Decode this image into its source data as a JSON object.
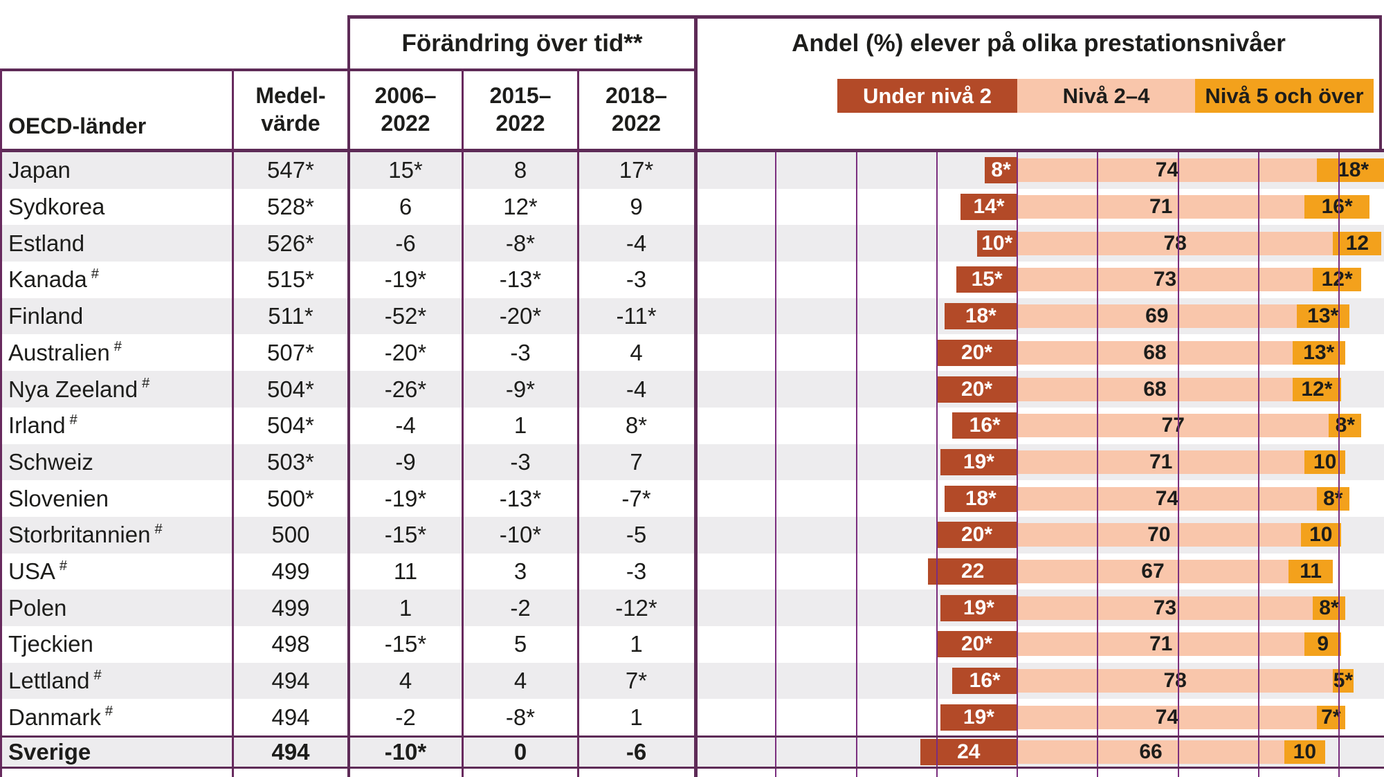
{
  "header": {
    "col_country": "OECD-länder",
    "col_mean": "Medel-\nvärde",
    "group_change": "Förändring över tid**",
    "col_period1": "2006–\n2022",
    "col_period2": "2015–\n2022",
    "col_period3": "2018–\n2022",
    "group_share": "Andel (%) elever på olika prestationsnivåer",
    "legend": [
      {
        "label": "Under nivå 2",
        "color": "#b34a28",
        "text_color": "#ffffff"
      },
      {
        "label": "Nivå 2–4",
        "color": "#f9c6ab",
        "text_color": "#1d1d1b"
      },
      {
        "label": "Nivå 5 och över",
        "color": "#f3a11c",
        "text_color": "#1d1d1b"
      }
    ]
  },
  "colors": {
    "under_level2": "#b34a28",
    "level2_4": "#f9c6ab",
    "level5_over": "#f3a11c",
    "border_purple": "#5e2b57",
    "gridline_purple": "#7b2e7e",
    "row_stripe": "#edecee",
    "text": "#1d1d1b"
  },
  "rows": [
    {
      "name": "Japan",
      "hash": false,
      "bold": false,
      "mean": "547*",
      "d2006": "15*",
      "d2015": "8",
      "d2018": "17*",
      "under": 8,
      "under_label": "8*",
      "mid": 74,
      "mid_label": "74",
      "high": 18,
      "high_label": "18*"
    },
    {
      "name": "Sydkorea",
      "hash": false,
      "bold": false,
      "mean": "528*",
      "d2006": "6",
      "d2015": "12*",
      "d2018": "9",
      "under": 14,
      "under_label": "14*",
      "mid": 71,
      "mid_label": "71",
      "high": 16,
      "high_label": "16*"
    },
    {
      "name": "Estland",
      "hash": false,
      "bold": false,
      "mean": "526*",
      "d2006": "-6",
      "d2015": "-8*",
      "d2018": "-4",
      "under": 10,
      "under_label": "10*",
      "mid": 78,
      "mid_label": "78",
      "high": 12,
      "high_label": "12"
    },
    {
      "name": "Kanada",
      "hash": true,
      "bold": false,
      "mean": "515*",
      "d2006": "-19*",
      "d2015": "-13*",
      "d2018": "-3",
      "under": 15,
      "under_label": "15*",
      "mid": 73,
      "mid_label": "73",
      "high": 12,
      "high_label": "12*"
    },
    {
      "name": "Finland",
      "hash": false,
      "bold": false,
      "mean": "511*",
      "d2006": "-52*",
      "d2015": "-20*",
      "d2018": "-11*",
      "under": 18,
      "under_label": "18*",
      "mid": 69,
      "mid_label": "69",
      "high": 13,
      "high_label": "13*"
    },
    {
      "name": "Australien",
      "hash": true,
      "bold": false,
      "mean": "507*",
      "d2006": "-20*",
      "d2015": "-3",
      "d2018": "4",
      "under": 20,
      "under_label": "20*",
      "mid": 68,
      "mid_label": "68",
      "high": 13,
      "high_label": "13*"
    },
    {
      "name": "Nya Zeeland",
      "hash": true,
      "bold": false,
      "mean": "504*",
      "d2006": "-26*",
      "d2015": "-9*",
      "d2018": "-4",
      "under": 20,
      "under_label": "20*",
      "mid": 68,
      "mid_label": "68",
      "high": 12,
      "high_label": "12*"
    },
    {
      "name": "Irland",
      "hash": true,
      "bold": false,
      "mean": "504*",
      "d2006": "-4",
      "d2015": "1",
      "d2018": "8*",
      "under": 16,
      "under_label": "16*",
      "mid": 77,
      "mid_label": "77",
      "high": 8,
      "high_label": "8*"
    },
    {
      "name": "Schweiz",
      "hash": false,
      "bold": false,
      "mean": "503*",
      "d2006": "-9",
      "d2015": "-3",
      "d2018": "7",
      "under": 19,
      "under_label": "19*",
      "mid": 71,
      "mid_label": "71",
      "high": 10,
      "high_label": "10"
    },
    {
      "name": "Slovenien",
      "hash": false,
      "bold": false,
      "mean": "500*",
      "d2006": "-19*",
      "d2015": "-13*",
      "d2018": "-7*",
      "under": 18,
      "under_label": "18*",
      "mid": 74,
      "mid_label": "74",
      "high": 8,
      "high_label": "8*"
    },
    {
      "name": "Storbritannien",
      "hash": true,
      "bold": false,
      "mean": "500",
      "d2006": "-15*",
      "d2015": "-10*",
      "d2018": "-5",
      "under": 20,
      "under_label": "20*",
      "mid": 70,
      "mid_label": "70",
      "high": 10,
      "high_label": "10"
    },
    {
      "name": "USA",
      "hash": true,
      "bold": false,
      "mean": "499",
      "d2006": "11",
      "d2015": "3",
      "d2018": "-3",
      "under": 22,
      "under_label": "22",
      "mid": 67,
      "mid_label": "67",
      "high": 11,
      "high_label": "11"
    },
    {
      "name": "Polen",
      "hash": false,
      "bold": false,
      "mean": "499",
      "d2006": "1",
      "d2015": "-2",
      "d2018": "-12*",
      "under": 19,
      "under_label": "19*",
      "mid": 73,
      "mid_label": "73",
      "high": 8,
      "high_label": "8*"
    },
    {
      "name": "Tjeckien",
      "hash": false,
      "bold": false,
      "mean": "498",
      "d2006": "-15*",
      "d2015": "5",
      "d2018": "1",
      "under": 20,
      "under_label": "20*",
      "mid": 71,
      "mid_label": "71",
      "high": 9,
      "high_label": "9"
    },
    {
      "name": "Lettland",
      "hash": true,
      "bold": false,
      "mean": "494",
      "d2006": "4",
      "d2015": "4",
      "d2018": "7*",
      "under": 16,
      "under_label": "16*",
      "mid": 78,
      "mid_label": "78",
      "high": 5,
      "high_label": "5*"
    },
    {
      "name": "Danmark",
      "hash": true,
      "bold": false,
      "mean": "494",
      "d2006": "-2",
      "d2015": "-8*",
      "d2018": "1",
      "under": 19,
      "under_label": "19*",
      "mid": 74,
      "mid_label": "74",
      "high": 7,
      "high_label": "7*"
    },
    {
      "name": "Sverige",
      "hash": false,
      "bold": true,
      "mean": "494",
      "d2006": "-10*",
      "d2015": "0",
      "d2018": "-6",
      "under": 24,
      "under_label": "24",
      "mid": 66,
      "mid_label": "66",
      "high": 10,
      "high_label": "10"
    }
  ],
  "chart_data": {
    "type": "bar",
    "stacked": true,
    "orientation": "horizontal",
    "title": "Andel (%) elever på olika prestationsnivåer",
    "categories": [
      "Japan",
      "Sydkorea",
      "Estland",
      "Kanada",
      "Finland",
      "Australien",
      "Nya Zeeland",
      "Irland",
      "Schweiz",
      "Slovenien",
      "Storbritannien",
      "USA",
      "Polen",
      "Tjeckien",
      "Lettland",
      "Danmark",
      "Sverige"
    ],
    "series": [
      {
        "name": "Under nivå 2",
        "values": [
          8,
          14,
          10,
          15,
          18,
          20,
          20,
          16,
          19,
          18,
          20,
          22,
          19,
          20,
          16,
          19,
          24
        ]
      },
      {
        "name": "Nivå 2–4",
        "values": [
          74,
          71,
          78,
          73,
          69,
          68,
          68,
          77,
          71,
          74,
          70,
          67,
          73,
          71,
          78,
          74,
          66
        ]
      },
      {
        "name": "Nivå 5 och över",
        "values": [
          18,
          16,
          12,
          12,
          13,
          13,
          12,
          8,
          10,
          8,
          10,
          11,
          8,
          9,
          5,
          7,
          10
        ]
      }
    ],
    "table_columns": [
      "Medelvärde",
      "2006–2022",
      "2015–2022",
      "2018–2022"
    ],
    "table_values": [
      [
        "547*",
        "15*",
        "8",
        "17*"
      ],
      [
        "528*",
        "6",
        "12*",
        "9"
      ],
      [
        "526*",
        "-6",
        "-8*",
        "-4"
      ],
      [
        "515*",
        "-19*",
        "-13*",
        "-3"
      ],
      [
        "511*",
        "-52*",
        "-20*",
        "-11*"
      ],
      [
        "507*",
        "-20*",
        "-3",
        "4"
      ],
      [
        "504*",
        "-26*",
        "-9*",
        "-4"
      ],
      [
        "504*",
        "-4",
        "1",
        "8*"
      ],
      [
        "503*",
        "-9",
        "-3",
        "7"
      ],
      [
        "500*",
        "-19*",
        "-13*",
        "-7*"
      ],
      [
        "500",
        "-15*",
        "-10*",
        "-5"
      ],
      [
        "499",
        "11",
        "3",
        "-3"
      ],
      [
        "499",
        "1",
        "-2",
        "-12*"
      ],
      [
        "498",
        "-15*",
        "5",
        "1"
      ],
      [
        "494",
        "4",
        "4",
        "7*"
      ],
      [
        "494",
        "-2",
        "-8*",
        "1"
      ],
      [
        "494",
        "-10*",
        "0",
        "-6"
      ]
    ],
    "legend_position": "top",
    "grid": true,
    "gridline_step_pct": 20,
    "axis_anchor": "boundary between Under nivå 2 and Nivå 2–4 aligned at a common vertical line"
  }
}
